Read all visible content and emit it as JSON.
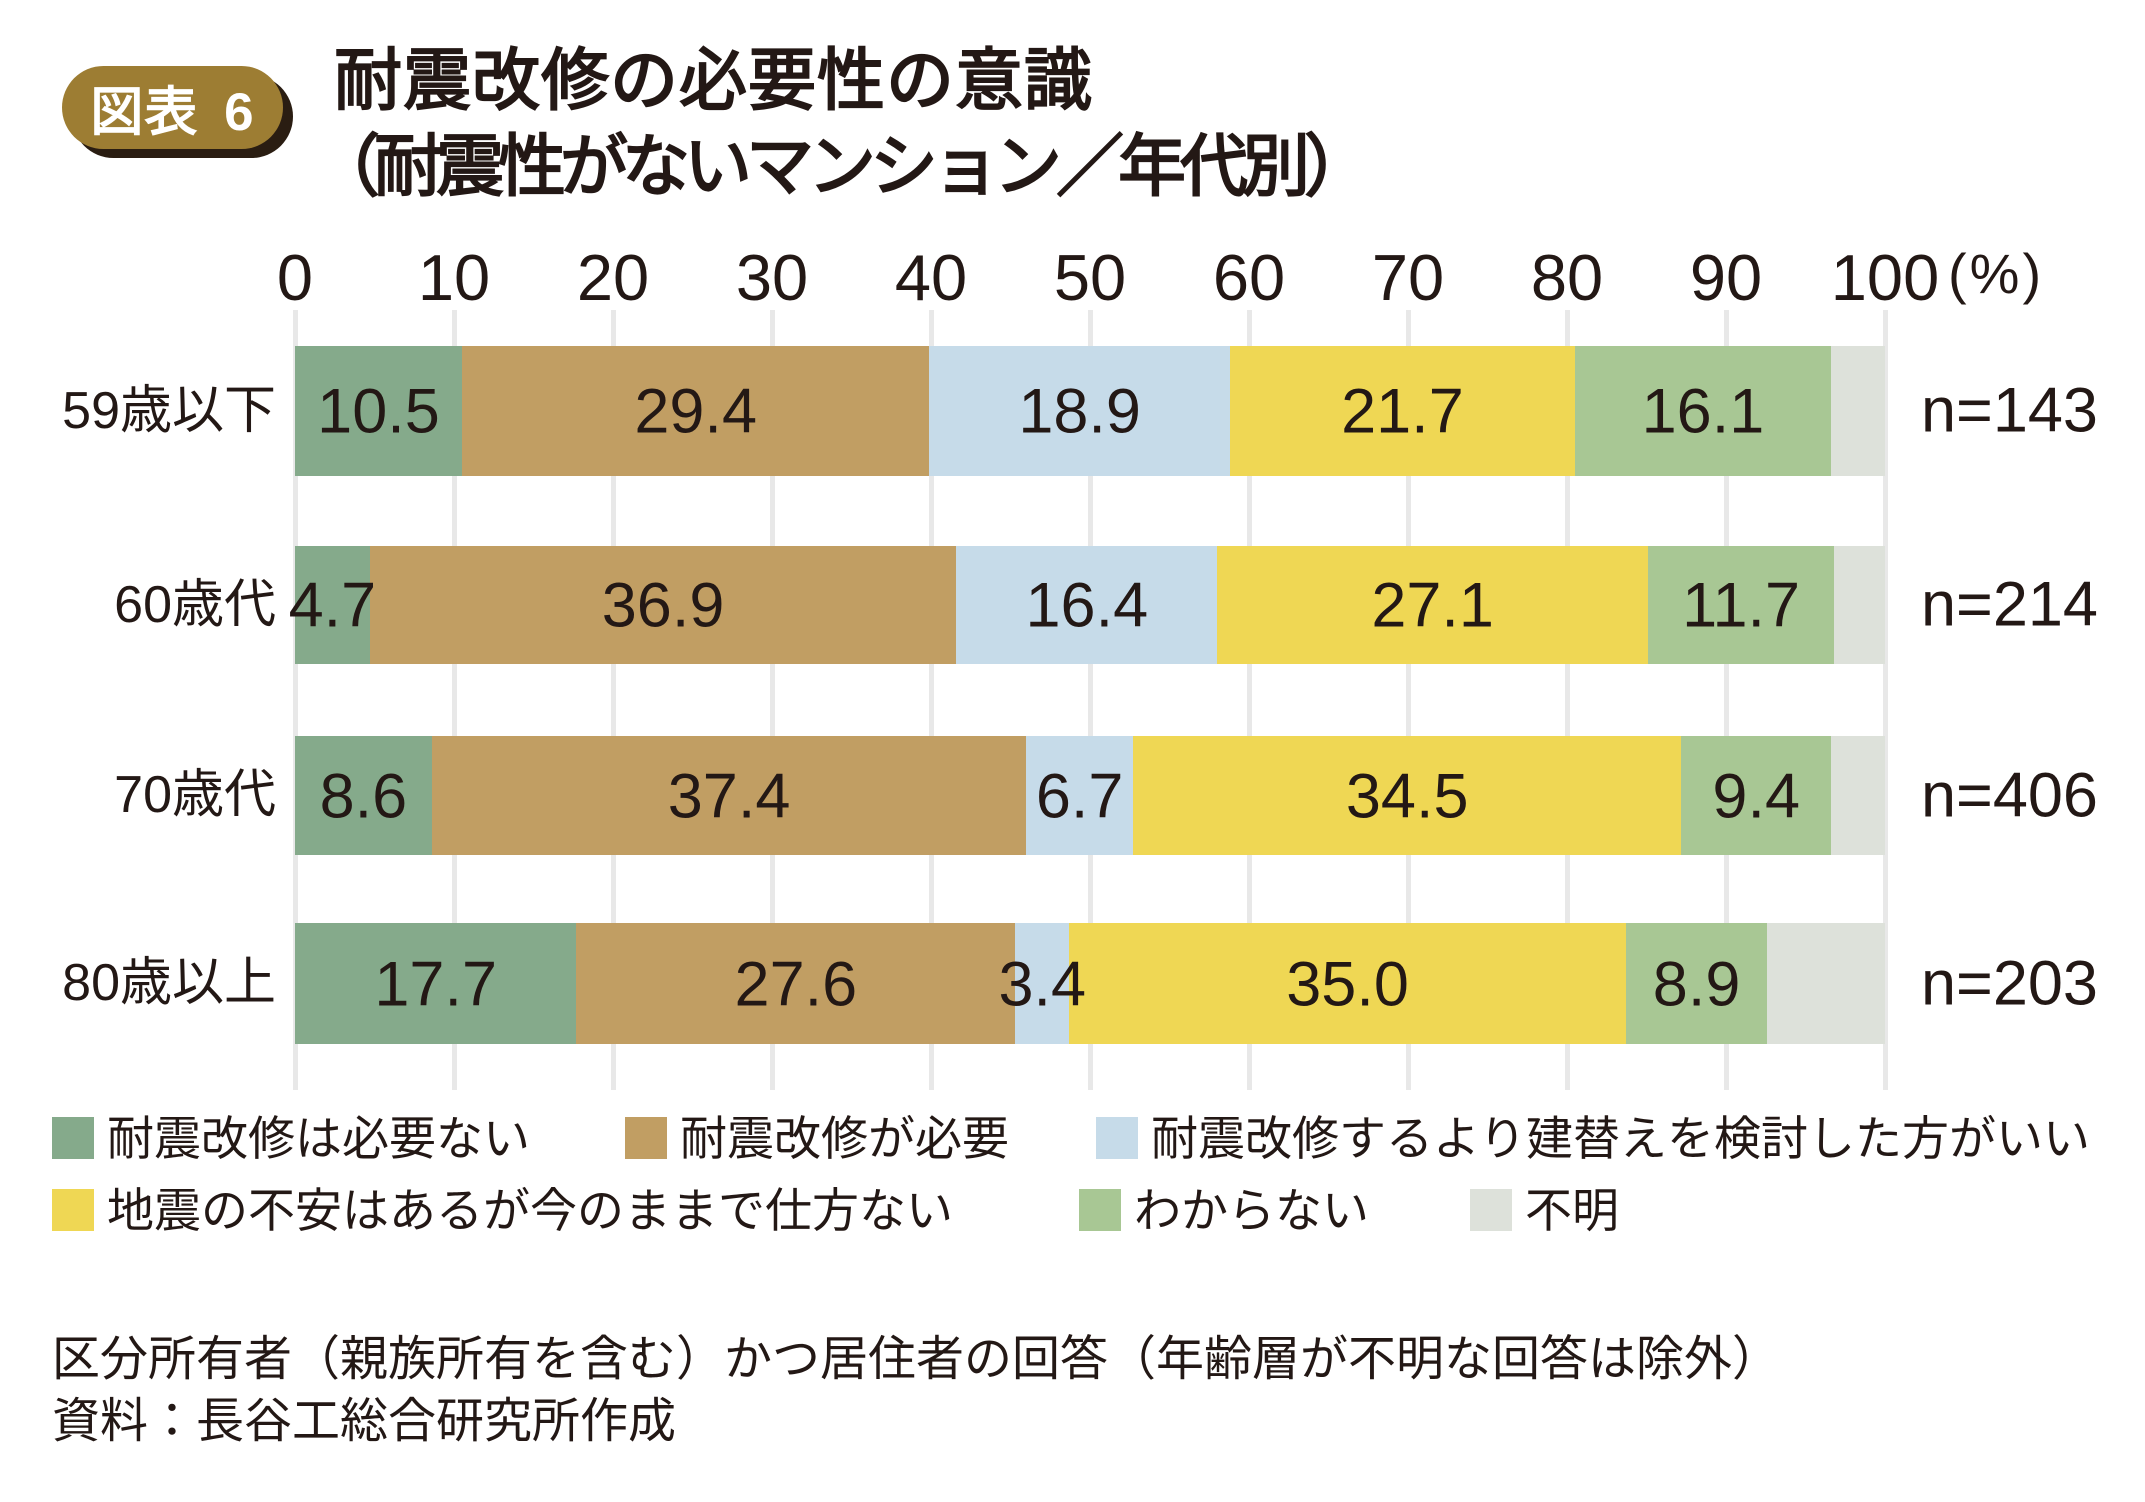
{
  "chart_data": {
    "type": "bar",
    "orientation": "horizontal",
    "stacked": true,
    "figure_label": "図表 6",
    "title": "耐震改修の必要性の意識",
    "subtitle": "（耐震性がないマンション／年代別）",
    "unit_label": "(%)",
    "xlim": [
      0,
      100
    ],
    "x_ticks": [
      0,
      10,
      20,
      30,
      40,
      50,
      60,
      70,
      80,
      90,
      100
    ],
    "grid": true,
    "legend_position": "bottom",
    "categories": [
      "59歳以下",
      "60歳代",
      "70歳代",
      "80歳以上"
    ],
    "sample_sizes": [
      "n=143",
      "n=214",
      "n=406",
      "n=203"
    ],
    "series": [
      {
        "name": "耐震改修は必要ない",
        "color": "#85aa8b",
        "values": [
          10.5,
          4.7,
          8.6,
          17.7
        ],
        "show_value_labels": true
      },
      {
        "name": "耐震改修が必要",
        "color": "#c19e63",
        "values": [
          29.4,
          36.9,
          37.4,
          27.6
        ],
        "show_value_labels": true
      },
      {
        "name": "耐震改修するより建替えを検討した方がいい",
        "color": "#c6dbe9",
        "values": [
          18.9,
          16.4,
          6.7,
          3.4
        ],
        "show_value_labels": true
      },
      {
        "name": "地震の不安はあるが今のままで仕方ない",
        "color": "#efd754",
        "values": [
          21.7,
          27.1,
          34.5,
          35.0
        ],
        "show_value_labels": true
      },
      {
        "name": "わからない",
        "color": "#a8c794",
        "values": [
          16.1,
          11.7,
          9.4,
          8.9
        ],
        "show_value_labels": true
      },
      {
        "name": "不明",
        "color": "#dde1da",
        "values": [
          3.4,
          3.2,
          3.4,
          7.4
        ],
        "show_value_labels": false
      }
    ],
    "notes": [
      "区分所有者（親族所有を含む）かつ居住者の回答（年齢層が不明な回答は除外）",
      "資料：長谷工総合研究所作成"
    ]
  },
  "colors": {
    "ink": "#231815",
    "grid": "#e8e8e8",
    "badge_fill": "#9d7d33",
    "badge_shadow": "#2a1d12",
    "background": "#ffffff"
  }
}
